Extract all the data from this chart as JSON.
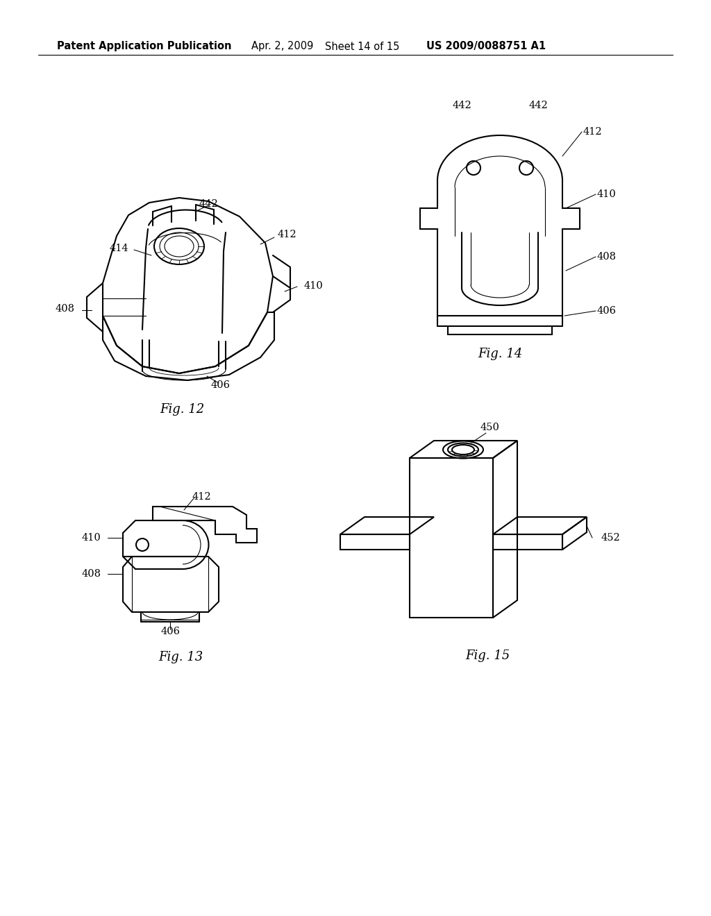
{
  "background_color": "#ffffff",
  "header_text": "Patent Application Publication",
  "header_date": "Apr. 2, 2009",
  "header_sheet": "Sheet 14 of 15",
  "header_patent": "US 2009/0088751 A1",
  "fig12_caption": "Fig. 12",
  "fig13_caption": "Fig. 13",
  "fig14_caption": "Fig. 14",
  "fig15_caption": "Fig. 15",
  "line_color": "#000000",
  "lw_main": 1.5,
  "lw_thin": 0.8,
  "label_fontsize": 10.5,
  "caption_fontsize": 13,
  "header_fontsize": 10.5
}
